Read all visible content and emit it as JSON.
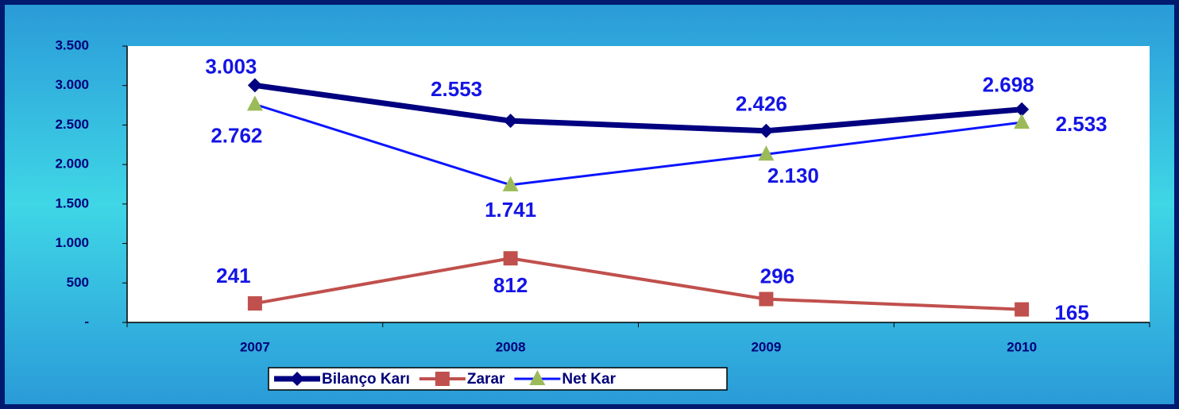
{
  "chart_data": {
    "type": "line",
    "categories": [
      "2007",
      "2008",
      "2009",
      "2010"
    ],
    "series": [
      {
        "name": "Bilanço Karı",
        "color": "#000080",
        "marker": "diamond",
        "values": [
          3003,
          2553,
          2426,
          2698
        ],
        "value_labels": [
          "3.003",
          "2.553",
          "2.426",
          "2.698"
        ]
      },
      {
        "name": "Zarar",
        "color": "#c0504d",
        "marker": "square",
        "values": [
          241,
          812,
          296,
          165
        ],
        "value_labels": [
          "241",
          "812",
          "296",
          "165"
        ]
      },
      {
        "name": "Net Kar",
        "color": "#0a14ff",
        "marker": "triangle",
        "marker_color": "#9bbb59",
        "values": [
          2762,
          1741,
          2130,
          2533
        ],
        "value_labels": [
          "2.762",
          "1.741",
          "2.130",
          "2.533"
        ]
      }
    ],
    "ylim": [
      0,
      3500
    ],
    "yticks": [
      {
        "value": 0,
        "label": "-"
      },
      500,
      {
        "value": 1000,
        "label": "1.000"
      },
      {
        "value": 1500,
        "label": "1.500"
      },
      {
        "value": 2000,
        "label": "2.000"
      },
      {
        "value": 2500,
        "label": "2.500"
      },
      {
        "value": 3000,
        "label": "3.000"
      },
      {
        "value": 3500,
        "label": "3.500"
      }
    ],
    "grid": false,
    "legend": "bottom"
  }
}
